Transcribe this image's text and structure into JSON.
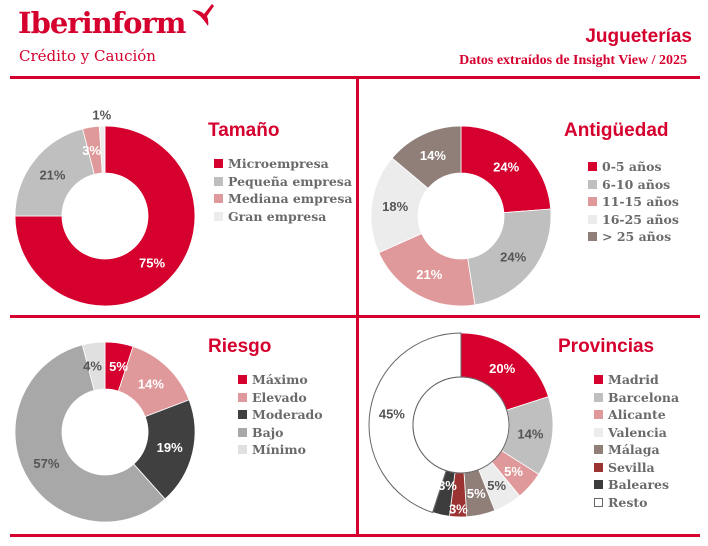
{
  "header": {
    "logo": "Iberinform",
    "logo_sub": "Crédito y Caución",
    "title": "Jugueterías",
    "subtitle": "Datos extraídos de Insight View / 2025"
  },
  "colors": {
    "accent": "#d5002e"
  },
  "chart_data": [
    {
      "type": "pie",
      "donut": true,
      "title": "Tamaño",
      "categories": [
        "Microempresa",
        "Pequeña empresa",
        "Mediana empresa",
        "Gran empresa"
      ],
      "values": [
        75,
        21,
        3,
        1
      ],
      "labels": [
        "75%",
        "21%",
        "3%",
        "1%"
      ],
      "colors": [
        "#d5002e",
        "#bfbfbf",
        "#e0999a",
        "#ececec"
      ],
      "legend": "right"
    },
    {
      "type": "pie",
      "donut": true,
      "title": "Antigüedad",
      "categories": [
        "0-5 años",
        "6-10 años",
        "11-15 años",
        "16-25 años",
        "> 25 años"
      ],
      "values": [
        24,
        24,
        21,
        18,
        14
      ],
      "labels": [
        "24%",
        "24%",
        "21%",
        "18%",
        "14%"
      ],
      "colors": [
        "#d5002e",
        "#bfbfbf",
        "#e0999a",
        "#ececec",
        "#8f7f78"
      ],
      "legend": "right"
    },
    {
      "type": "pie",
      "donut": true,
      "title": "Riesgo",
      "categories": [
        "Máximo",
        "Elevado",
        "Moderado",
        "Bajo",
        "Mínimo"
      ],
      "values": [
        5,
        14,
        19,
        57,
        4
      ],
      "labels": [
        "5%",
        "14%",
        "19%",
        "57%",
        "4%"
      ],
      "colors": [
        "#d5002e",
        "#e0999a",
        "#404040",
        "#a8a8a8",
        "#e0e0e0"
      ],
      "legend": "right"
    },
    {
      "type": "pie",
      "donut": true,
      "title": "Provincias",
      "categories": [
        "Madrid",
        "Barcelona",
        "Alicante",
        "Valencia",
        "Málaga",
        "Sevilla",
        "Baleares",
        "Resto"
      ],
      "values": [
        20,
        14,
        5,
        5,
        5,
        3,
        3,
        45
      ],
      "labels": [
        "20%",
        "14%",
        "5%",
        "5%",
        "5%",
        "3%",
        "3%",
        "45%"
      ],
      "colors": [
        "#d5002e",
        "#bfbfbf",
        "#e0999a",
        "#ececec",
        "#8f7f78",
        "#9b3333",
        "#3c3c3c",
        "#ffffff"
      ],
      "legend": "right"
    }
  ]
}
